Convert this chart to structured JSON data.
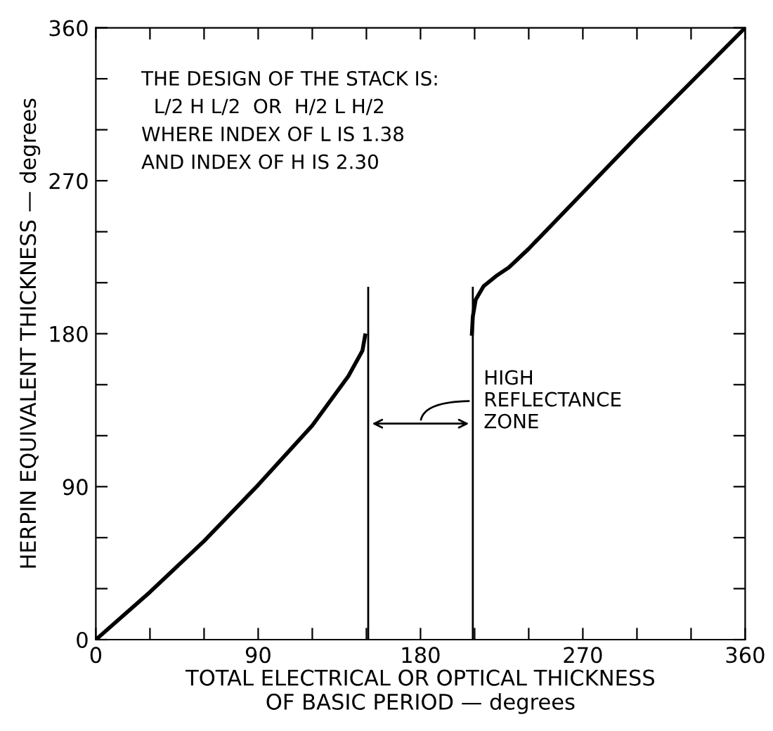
{
  "chart_data": {
    "type": "line",
    "xlabel": "TOTAL ELECTRICAL OR OPTICAL THICKNESS\nOF BASIC PERIOD — degrees",
    "ylabel": "HERPIN EQUIVALENT THICKNESS — degrees",
    "series": [
      {
        "color": "#000000",
        "x": [
          0,
          30,
          60,
          90,
          120,
          140,
          147.8,
          149.3
        ],
        "values": [
          0,
          28,
          58,
          91,
          126,
          155,
          170,
          179
        ]
      },
      {
        "color": "#000000",
        "x": [
          208.5,
          209,
          210.6,
          215,
          222,
          229,
          240,
          270,
          300,
          330,
          360
        ],
        "values": [
          180,
          190,
          200,
          208,
          214,
          219,
          230,
          263,
          296,
          328,
          360
        ]
      }
    ],
    "xlim": [
      0,
      360
    ],
    "ylim": [
      0,
      360
    ],
    "xticks": [
      0,
      {
        "value": 30,
        "label": null
      },
      {
        "value": 60,
        "label": null
      },
      90,
      {
        "value": 120,
        "label": null
      },
      {
        "value": 150,
        "label": null
      },
      180,
      {
        "value": 210,
        "label": null
      },
      {
        "value": 240,
        "label": null
      },
      270,
      {
        "value": 300,
        "label": null
      },
      {
        "value": 330,
        "label": null
      },
      360
    ],
    "yticks": [
      0,
      {
        "value": 30,
        "label": null
      },
      {
        "value": 60,
        "label": null
      },
      90,
      {
        "value": 120,
        "label": null
      },
      {
        "value": 150,
        "label": null
      },
      180,
      {
        "value": 210,
        "label": null
      },
      {
        "value": 240,
        "label": null
      },
      270,
      {
        "value": 300,
        "label": null
      },
      {
        "value": 330,
        "label": null
      },
      360
    ],
    "ref_lines": [
      {
        "axis": "x",
        "value": 151,
        "color": "#000000"
      },
      {
        "axis": "x",
        "value": 209,
        "color": "#000000"
      }
    ],
    "annotations": [
      "THE DESIGN OF THE STACK IS:\n  L/2 H L/2  OR  H/2 L H/2\nWHERE INDEX OF L IS 1.38\nAND INDEX OF H IS 2.30",
      "HIGH\nREFLECTANCE\nZONE"
    ],
    "grid": false,
    "legend": false,
    "marker": "none",
    "line_style": "solid"
  }
}
